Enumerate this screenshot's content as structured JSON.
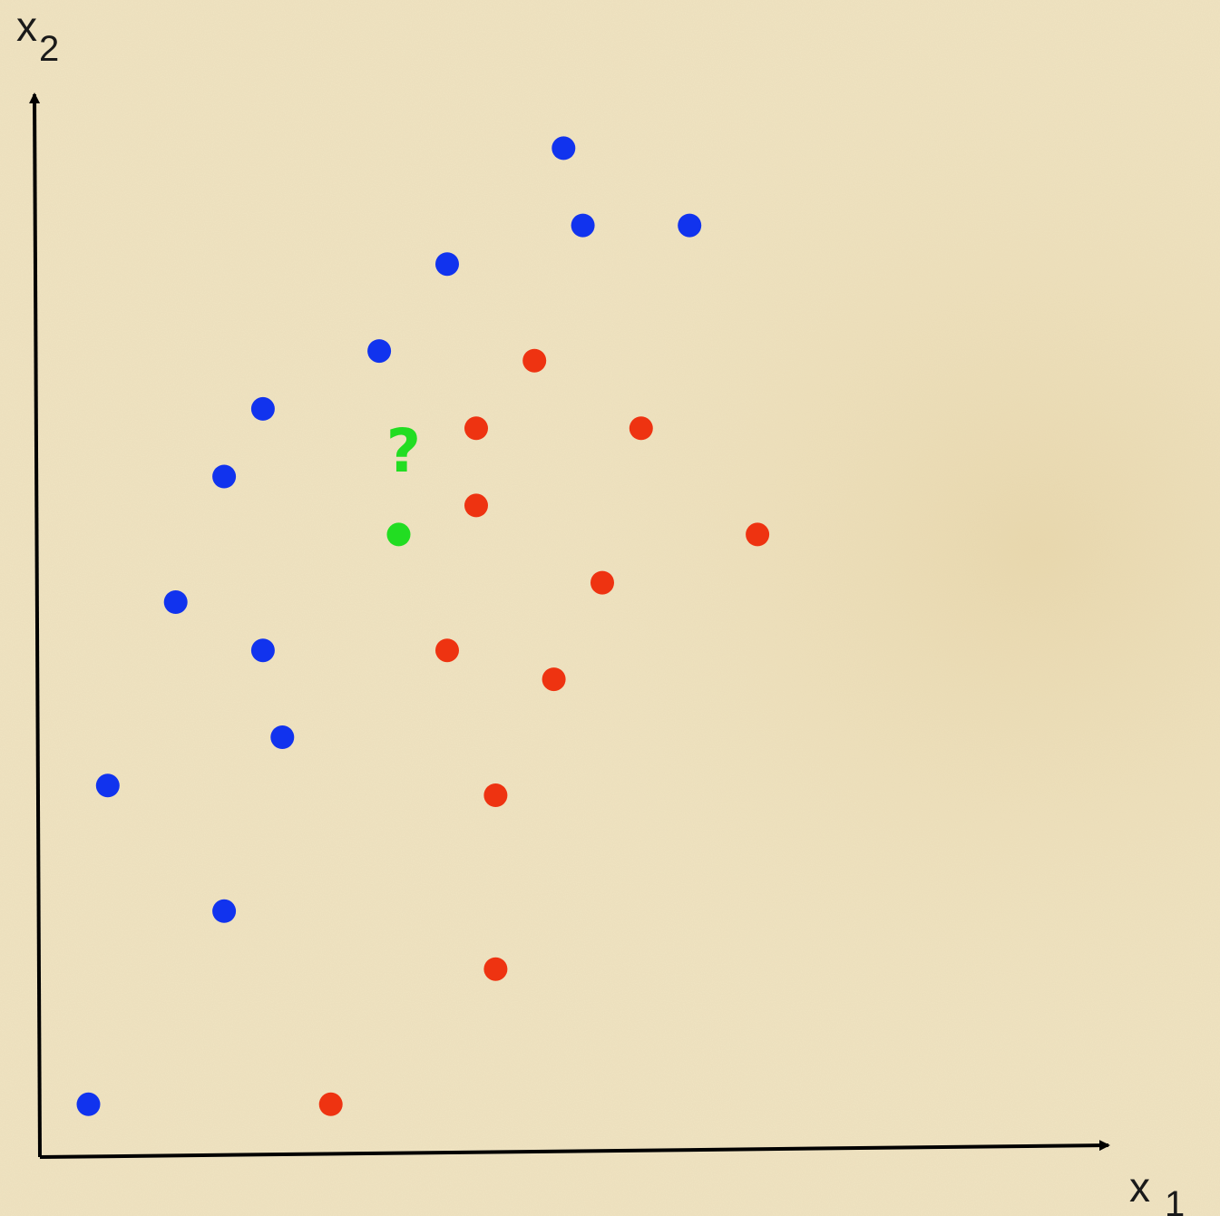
{
  "chart_data": {
    "type": "scatter",
    "title": "",
    "xlabel": {
      "base": "x",
      "subscript": "1"
    },
    "ylabel": {
      "base": "x",
      "subscript": "2"
    },
    "xlim": [
      0,
      100
    ],
    "ylim": [
      0,
      100
    ],
    "grid": false,
    "legend": "none",
    "background": "#f0e4c2",
    "axis_color": "#000000",
    "series": [
      {
        "color": "#1133ee",
        "points": [
          {
            "x": 5,
            "y": 5
          },
          {
            "x": 19,
            "y": 25
          },
          {
            "x": 7,
            "y": 38
          },
          {
            "x": 25,
            "y": 43
          },
          {
            "x": 23,
            "y": 52
          },
          {
            "x": 14,
            "y": 57
          },
          {
            "x": 19,
            "y": 70
          },
          {
            "x": 23,
            "y": 77
          },
          {
            "x": 35,
            "y": 83
          },
          {
            "x": 42,
            "y": 92
          },
          {
            "x": 56,
            "y": 96
          },
          {
            "x": 54,
            "y": 104
          },
          {
            "x": 67,
            "y": 96
          }
        ]
      },
      {
        "color": "#ee3311",
        "points": [
          {
            "x": 30,
            "y": 5
          },
          {
            "x": 47,
            "y": 19
          },
          {
            "x": 47,
            "y": 37
          },
          {
            "x": 53,
            "y": 49
          },
          {
            "x": 42,
            "y": 52
          },
          {
            "x": 58,
            "y": 59
          },
          {
            "x": 74,
            "y": 64
          },
          {
            "x": 45,
            "y": 67
          },
          {
            "x": 45,
            "y": 75
          },
          {
            "x": 62,
            "y": 75
          },
          {
            "x": 51,
            "y": 82
          }
        ]
      },
      {
        "color": "#22dd22",
        "points": [
          {
            "x": 37,
            "y": 64
          }
        ]
      }
    ],
    "annotations": [
      {
        "text": "?",
        "x": 37.5,
        "y": 70.5,
        "color": "#22dd22"
      }
    ]
  }
}
